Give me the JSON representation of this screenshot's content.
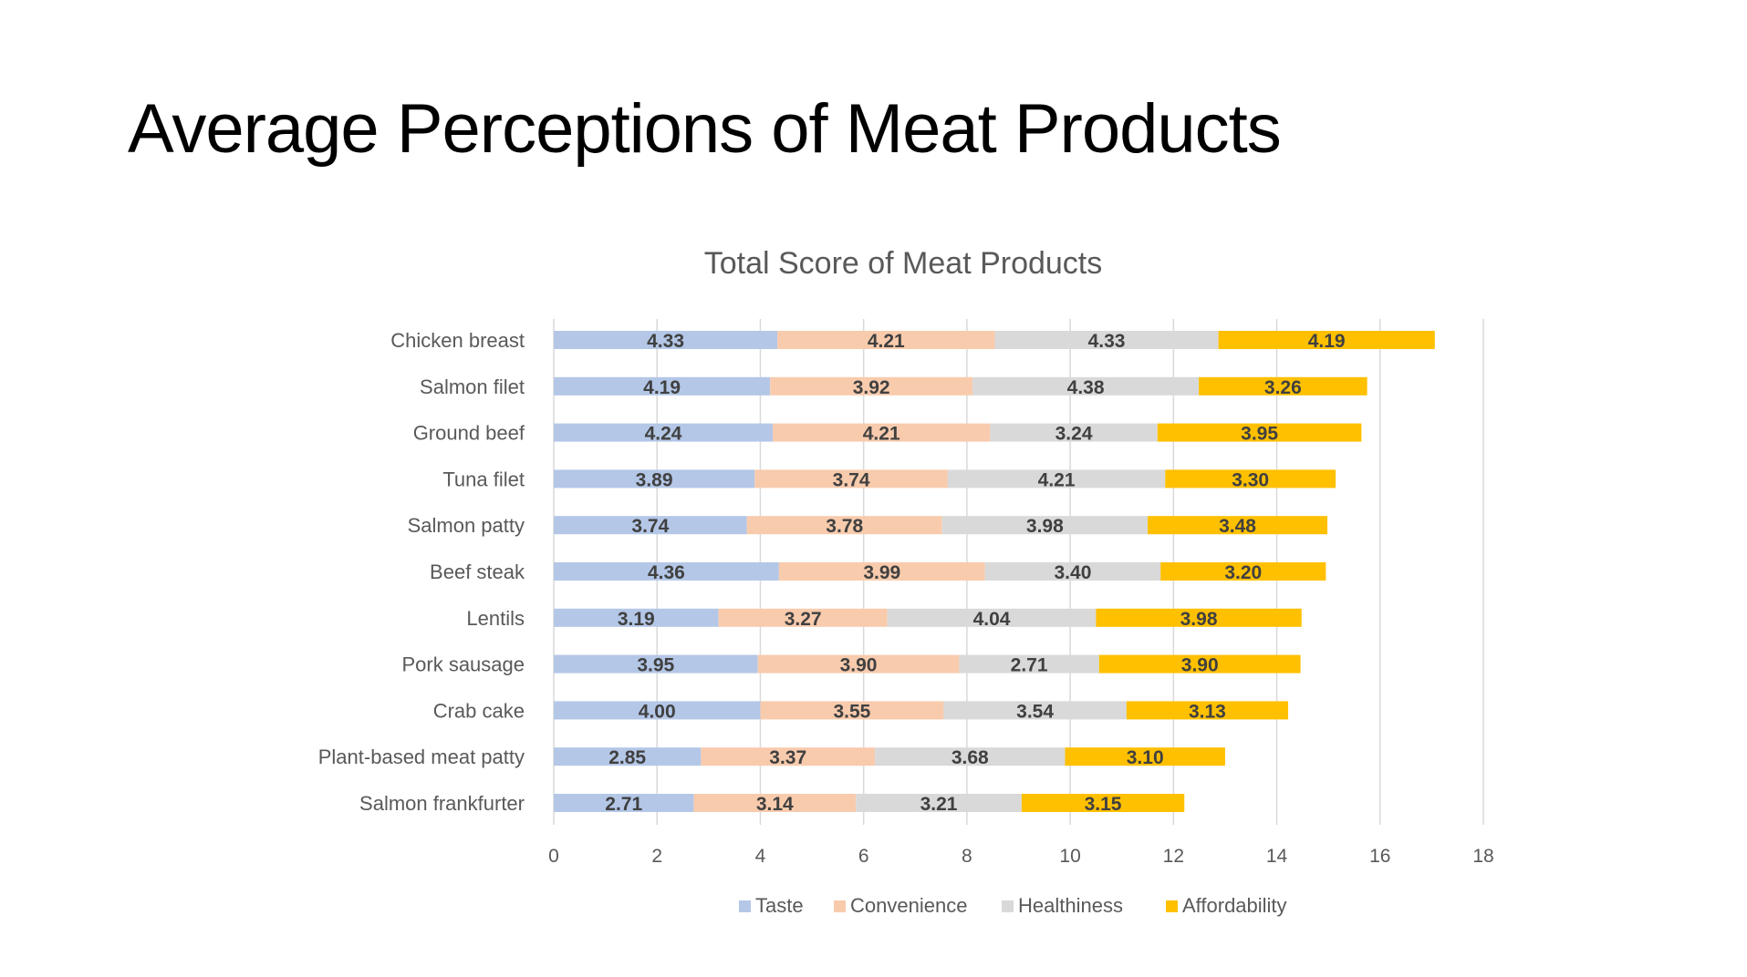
{
  "slide": {
    "title": "Average Perceptions of Meat Products"
  },
  "chart_data": {
    "type": "bar",
    "orientation": "horizontal",
    "stacked": true,
    "title": "Total Score of Meat Products",
    "xlabel": "",
    "ylabel": "",
    "xlim": [
      0,
      18
    ],
    "x_ticks": [
      0,
      2,
      4,
      6,
      8,
      10,
      12,
      14,
      16,
      18
    ],
    "grid": "vertical",
    "legend_position": "bottom",
    "categories": [
      "Chicken breast",
      "Salmon filet",
      "Ground beef",
      "Tuna filet",
      "Salmon patty",
      "Beef steak",
      "Lentils",
      "Pork sausage",
      "Crab cake",
      "Plant-based meat patty",
      "Salmon frankfurter"
    ],
    "series": [
      {
        "name": "Taste",
        "color": "#b4c7e7",
        "values": [
          4.33,
          4.19,
          4.24,
          3.89,
          3.74,
          4.36,
          3.19,
          3.95,
          4.0,
          2.85,
          2.71
        ],
        "labels": [
          "4.33",
          "4.19",
          "4.24",
          "3.89",
          "3.74",
          "4.36",
          "3.19",
          "3.95",
          "4.00",
          "2.85",
          "2.71"
        ]
      },
      {
        "name": "Convenience",
        "color": "#f8cbad",
        "values": [
          4.21,
          3.92,
          4.21,
          3.74,
          3.78,
          3.99,
          3.27,
          3.9,
          3.55,
          3.37,
          3.14
        ],
        "labels": [
          "4.21",
          "3.92",
          "4.21",
          "3.74",
          "3.78",
          "3.99",
          "3.27",
          "3.90",
          "3.55",
          "3.37",
          "3.14"
        ]
      },
      {
        "name": "Healthiness",
        "color": "#d9d9d9",
        "values": [
          4.33,
          4.38,
          3.24,
          4.21,
          3.98,
          3.4,
          4.04,
          2.71,
          3.54,
          3.68,
          3.21
        ],
        "labels": [
          "4.33",
          "4.38",
          "3.24",
          "4.21",
          "3.98",
          "3.40",
          "4.04",
          "2.71",
          "3.54",
          "3.68",
          "3.21"
        ]
      },
      {
        "name": "Affordability",
        "color": "#ffc000",
        "values": [
          4.19,
          3.26,
          3.95,
          3.3,
          3.48,
          3.2,
          3.98,
          3.9,
          3.13,
          3.1,
          3.15
        ],
        "labels": [
          "4.19",
          "3.26",
          "3.95",
          "3.30",
          "3.48",
          "3.20",
          "3.98",
          "3.90",
          "3.13",
          "3.10",
          "3.15"
        ]
      }
    ]
  }
}
